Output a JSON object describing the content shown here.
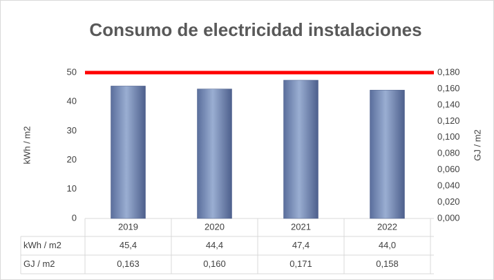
{
  "chart_data": {
    "type": "bar",
    "title": "Consumo de electricidad instalaciones",
    "categories": [
      "2019",
      "2020",
      "2021",
      "2022"
    ],
    "series": [
      {
        "name": "kWh / m2",
        "color": "#7084b0",
        "values": [
          45.4,
          44.4,
          47.4,
          44.0
        ],
        "value_labels": [
          "45,4",
          "44,4",
          "47,4",
          "44,0"
        ]
      },
      {
        "name": "GJ / m2",
        "axis": "y2",
        "values": [
          0.163,
          0.16,
          0.171,
          0.158
        ],
        "value_labels": [
          "0,163",
          "0,160",
          "0,171",
          "0,158"
        ]
      }
    ],
    "ylabel": "kWh / m2",
    "y2label": "GJ / m2",
    "ylim": [
      0,
      50
    ],
    "yticks": [
      0,
      10,
      20,
      30,
      40,
      50
    ],
    "y2lim": [
      0,
      0.18
    ],
    "y2ticks": [
      {
        "value": 0,
        "label": "0,000"
      },
      {
        "value": 0.02,
        "label": "0,020"
      },
      {
        "value": 0.04,
        "label": "0,040"
      },
      {
        "value": 0.06,
        "label": "0,060"
      },
      {
        "value": 0.08,
        "label": "0,080"
      },
      {
        "value": 0.1,
        "label": "0,100"
      },
      {
        "value": 0.12,
        "label": "0,120"
      },
      {
        "value": 0.14,
        "label": "0,140"
      },
      {
        "value": 0.16,
        "label": "0,160"
      },
      {
        "value": 0.18,
        "label": "0,180"
      }
    ],
    "reference_line": {
      "value": 50,
      "color": "#ff0000"
    },
    "data_table": true
  }
}
